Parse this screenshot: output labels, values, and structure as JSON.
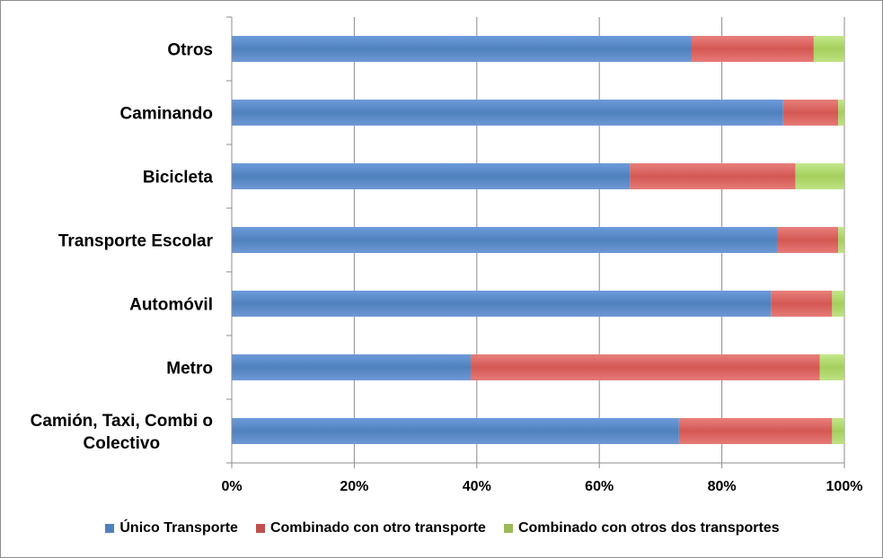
{
  "chart_data": {
    "type": "bar",
    "orientation": "horizontal",
    "stacked": "percent",
    "categories": [
      "Otros",
      "Caminando",
      "Bicicleta",
      "Transporte Escolar",
      "Automóvil",
      "Metro",
      "Camión, Taxi, Combi o Colectivo"
    ],
    "series": [
      {
        "name": "Único Transporte",
        "color": "#4f81bd",
        "values": [
          75,
          90,
          65,
          89,
          88,
          39,
          73
        ]
      },
      {
        "name": "Combinado con otro transporte",
        "color": "#c0504d",
        "values": [
          20,
          9,
          27,
          10,
          10,
          57,
          25
        ]
      },
      {
        "name": "Combinado con otros dos transportes",
        "color": "#9bbb59",
        "values": [
          5,
          1,
          8,
          1,
          2,
          4,
          2
        ]
      }
    ],
    "xlim": [
      0,
      100
    ],
    "xticks": [
      "0%",
      "20%",
      "40%",
      "60%",
      "80%",
      "100%"
    ],
    "grid": true,
    "legend_position": "bottom",
    "title": "",
    "xlabel": "",
    "ylabel": ""
  }
}
